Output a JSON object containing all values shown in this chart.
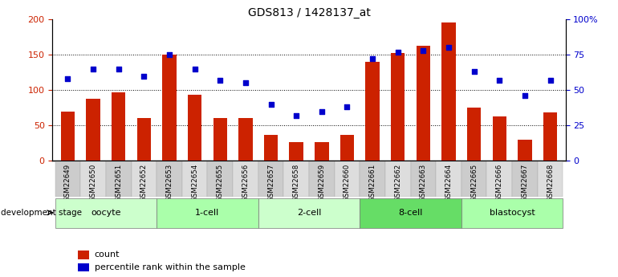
{
  "title": "GDS813 / 1428137_at",
  "samples": [
    "GSM22649",
    "GSM22650",
    "GSM22651",
    "GSM22652",
    "GSM22653",
    "GSM22654",
    "GSM22655",
    "GSM22656",
    "GSM22657",
    "GSM22658",
    "GSM22659",
    "GSM22660",
    "GSM22661",
    "GSM22662",
    "GSM22663",
    "GSM22664",
    "GSM22665",
    "GSM22666",
    "GSM22667",
    "GSM22668"
  ],
  "counts": [
    70,
    88,
    97,
    60,
    150,
    93,
    60,
    60,
    37,
    26,
    26,
    37,
    140,
    152,
    163,
    196,
    75,
    63,
    30,
    68
  ],
  "percentiles": [
    58,
    65,
    65,
    60,
    75,
    65,
    57,
    55,
    40,
    32,
    35,
    38,
    72,
    77,
    78,
    80,
    63,
    57,
    46,
    57
  ],
  "groups": [
    {
      "label": "oocyte",
      "start": 0,
      "end": 3,
      "color": "#ccffcc"
    },
    {
      "label": "1-cell",
      "start": 4,
      "end": 7,
      "color": "#aaffaa"
    },
    {
      "label": "2-cell",
      "start": 8,
      "end": 11,
      "color": "#ccffcc"
    },
    {
      "label": "8-cell",
      "start": 12,
      "end": 15,
      "color": "#66dd66"
    },
    {
      "label": "blastocyst",
      "start": 16,
      "end": 19,
      "color": "#aaffaa"
    }
  ],
  "bar_color": "#cc2200",
  "dot_color": "#0000cc",
  "left_ylim": [
    0,
    200
  ],
  "right_ylim": [
    0,
    100
  ],
  "left_yticks": [
    0,
    50,
    100,
    150,
    200
  ],
  "right_yticks": [
    0,
    25,
    50,
    75,
    100
  ],
  "right_yticklabels": [
    "0",
    "25",
    "50",
    "75",
    "100%"
  ],
  "left_ycolor": "#cc2200",
  "right_ycolor": "#0000cc",
  "grid_lines": [
    50,
    100,
    150
  ],
  "dev_stage_label": "development stage",
  "legend_count": "count",
  "legend_pct": "percentile rank within the sample",
  "tick_bg_color": "#cccccc",
  "tick_bg_color_alt": "#dddddd"
}
